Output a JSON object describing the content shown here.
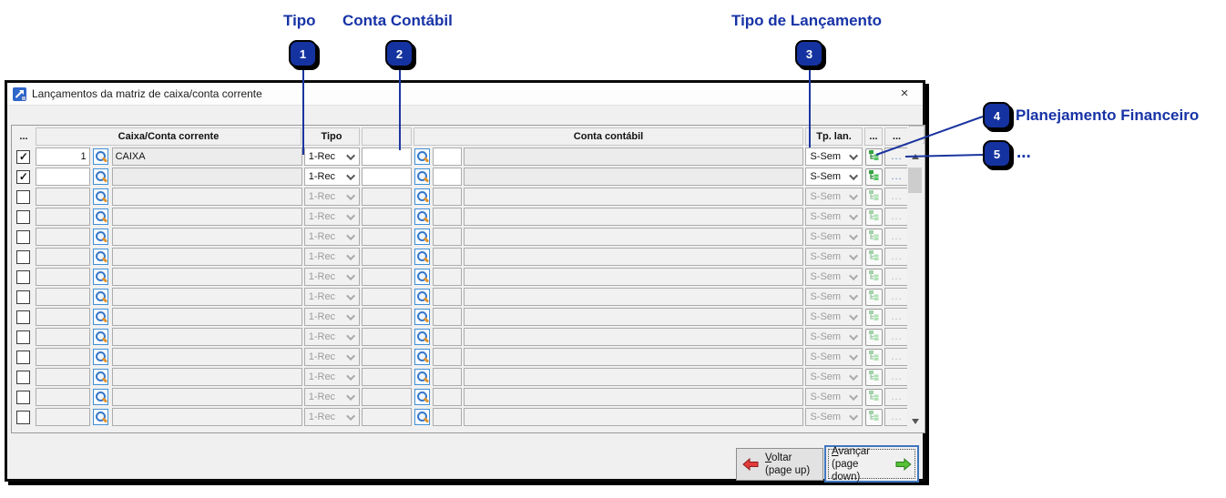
{
  "annotations": {
    "labels": {
      "tipo": "Tipo",
      "conta_contabil": "Conta Contábil",
      "tipo_lancamento": "Tipo de Lançamento",
      "planejamento_financeiro": "Planejamento Financeiro",
      "dots": "..."
    },
    "badges": {
      "b1": "1",
      "b2": "2",
      "b3": "3",
      "b4": "4",
      "b5": "5"
    }
  },
  "dialog": {
    "title": "Lançamentos da matriz de caixa/conta corrente",
    "close": "×"
  },
  "table": {
    "headers": {
      "check": "...",
      "caixa": "Caixa/Conta corrente",
      "tipo": "Tipo",
      "conta": "Conta contábil",
      "tp_lan": "Tp. lan.",
      "dots_a": "...",
      "dots_b": "...",
      "plus": "+"
    },
    "row_dots_label": "...",
    "check_glyph": "✓",
    "rows": [
      {
        "checked": true,
        "enabled": true,
        "num": "1",
        "name": "CAIXA",
        "tipo": "1-Rec",
        "tp_lan": "S-Sem"
      },
      {
        "checked": true,
        "enabled": true,
        "num": "",
        "name": "",
        "tipo": "1-Rec",
        "tp_lan": "S-Sem"
      },
      {
        "checked": false,
        "enabled": false,
        "num": "",
        "name": "",
        "tipo": "1-Rec",
        "tp_lan": "S-Sem"
      },
      {
        "checked": false,
        "enabled": false,
        "num": "",
        "name": "",
        "tipo": "1-Rec",
        "tp_lan": "S-Sem"
      },
      {
        "checked": false,
        "enabled": false,
        "num": "",
        "name": "",
        "tipo": "1-Rec",
        "tp_lan": "S-Sem"
      },
      {
        "checked": false,
        "enabled": false,
        "num": "",
        "name": "",
        "tipo": "1-Rec",
        "tp_lan": "S-Sem"
      },
      {
        "checked": false,
        "enabled": false,
        "num": "",
        "name": "",
        "tipo": "1-Rec",
        "tp_lan": "S-Sem"
      },
      {
        "checked": false,
        "enabled": false,
        "num": "",
        "name": "",
        "tipo": "1-Rec",
        "tp_lan": "S-Sem"
      },
      {
        "checked": false,
        "enabled": false,
        "num": "",
        "name": "",
        "tipo": "1-Rec",
        "tp_lan": "S-Sem"
      },
      {
        "checked": false,
        "enabled": false,
        "num": "",
        "name": "",
        "tipo": "1-Rec",
        "tp_lan": "S-Sem"
      },
      {
        "checked": false,
        "enabled": false,
        "num": "",
        "name": "",
        "tipo": "1-Rec",
        "tp_lan": "S-Sem"
      },
      {
        "checked": false,
        "enabled": false,
        "num": "",
        "name": "",
        "tipo": "1-Rec",
        "tp_lan": "S-Sem"
      },
      {
        "checked": false,
        "enabled": false,
        "num": "",
        "name": "",
        "tipo": "1-Rec",
        "tp_lan": "S-Sem"
      },
      {
        "checked": false,
        "enabled": false,
        "num": "",
        "name": "",
        "tipo": "1-Rec",
        "tp_lan": "S-Sem"
      }
    ]
  },
  "footer": {
    "voltar_line1": "Voltar",
    "voltar_line2": "(page up)",
    "avancar_line1": "Avançar",
    "avancar_line2": "(page down)"
  },
  "colors": {
    "annotation_blue": "#1733a6",
    "badge_fill": "#1533a0",
    "header_bg": "#f0f0f0",
    "disabled_text": "#9b9b9b",
    "arrow_red": "#e23b3b",
    "arrow_green": "#55c234"
  }
}
